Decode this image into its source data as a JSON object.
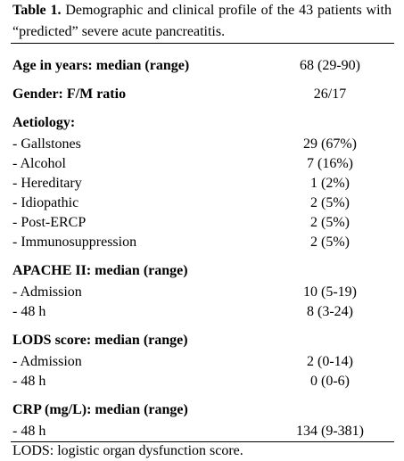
{
  "caption": {
    "label": "Table 1.",
    "text": "Demographic and clinical profile of the 43 patients with “predicted” severe acute pancreatitis."
  },
  "table": {
    "sections": [
      {
        "title": "Age in years: median (range)",
        "value": "68 (29-90)"
      },
      {
        "title": "Gender: F/M ratio",
        "value": "26/17"
      },
      {
        "title": "Aetiology:",
        "rows": [
          [
            "- Gallstones",
            "29 (67%)"
          ],
          [
            "- Alcohol",
            "7 (16%)"
          ],
          [
            "- Hereditary",
            "1 (2%)"
          ],
          [
            "- Idiopathic",
            "2 (5%)"
          ],
          [
            "- Post-ERCP",
            "2 (5%)"
          ],
          [
            "- Immunosuppression",
            "2 (5%)"
          ]
        ]
      },
      {
        "title": "APACHE II: median (range)",
        "rows": [
          [
            "- Admission",
            "10 (5-19)"
          ],
          [
            "- 48 h",
            "8 (3-24)"
          ]
        ]
      },
      {
        "title": "LODS score: median (range)",
        "rows": [
          [
            "- Admission",
            "2 (0-14)"
          ],
          [
            "- 48 h",
            "0 (0-6)"
          ]
        ]
      },
      {
        "title": "CRP (mg/L): median (range)",
        "rows": [
          [
            "- 48 h",
            "134 (9-381)"
          ]
        ]
      }
    ]
  },
  "footnote": "LODS: logistic organ dysfunction score."
}
